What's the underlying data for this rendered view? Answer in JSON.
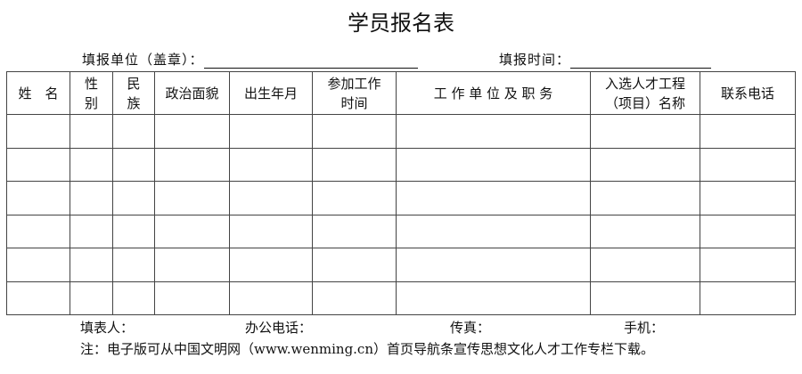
{
  "title": "学员报名表",
  "fill_unit_label": "填报单位（盖章）：",
  "fill_time_label": "填报时间：",
  "columns": [
    "姓　名",
    "性\n别",
    "民\n族",
    "政治面貌",
    "出生年月",
    "参加工作\n时间",
    "工 作 单 位 及 职 务",
    "入选人才工程\n（项目）名称",
    "联系电话"
  ],
  "row_count": 6,
  "footer": {
    "filler": "填表人：",
    "office_phone": "办公电话：",
    "fax": "传真：",
    "mobile": "手机：",
    "note": "注：电子版可从中国文明网（www.wenming.cn）首页导航条宣传思想文化人才工作专栏下载。"
  }
}
